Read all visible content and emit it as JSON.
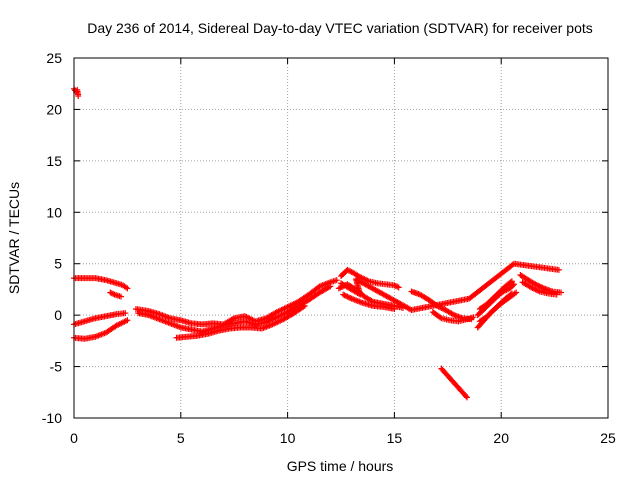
{
  "chart_data": {
    "type": "scatter",
    "title": "Day 236 of 2014, Sidereal Day-to-day VTEC variation (SDTVAR) for receiver pots",
    "xlabel": "GPS time / hours",
    "ylabel": "SDTVAR / TECUs",
    "xlim": [
      0,
      25
    ],
    "ylim": [
      -10,
      25
    ],
    "xticks": [
      0,
      5,
      10,
      15,
      20,
      25
    ],
    "yticks": [
      -10,
      -5,
      0,
      5,
      10,
      15,
      20,
      25
    ],
    "grid": true,
    "marker": "+",
    "color": "#ff0000",
    "segments": [
      {
        "name": "early-spike",
        "points": [
          [
            0.0,
            22.0
          ],
          [
            0.1,
            21.7
          ],
          [
            0.15,
            21.9
          ],
          [
            0.2,
            21.3
          ]
        ]
      },
      {
        "name": "upper-band-early",
        "points": [
          [
            0.0,
            3.6
          ],
          [
            0.5,
            3.6
          ],
          [
            1.0,
            3.6
          ],
          [
            1.5,
            3.4
          ],
          [
            2.0,
            3.1
          ],
          [
            2.3,
            2.9
          ],
          [
            2.5,
            2.6
          ]
        ]
      },
      {
        "name": "upper-band-tail",
        "points": [
          [
            1.7,
            2.2
          ],
          [
            1.9,
            2.0
          ],
          [
            2.2,
            1.8
          ]
        ]
      },
      {
        "name": "middle-band-early",
        "points": [
          [
            0.0,
            -0.9
          ],
          [
            0.5,
            -0.6
          ],
          [
            1.0,
            -0.3
          ],
          [
            1.5,
            -0.1
          ],
          [
            2.0,
            0.1
          ],
          [
            2.4,
            0.2
          ]
        ]
      },
      {
        "name": "lower-band-early",
        "points": [
          [
            0.0,
            -2.2
          ],
          [
            0.5,
            -2.3
          ],
          [
            1.0,
            -2.1
          ],
          [
            1.5,
            -1.7
          ],
          [
            2.0,
            -1.0
          ],
          [
            2.5,
            -0.5
          ]
        ]
      },
      {
        "name": "main-track-a",
        "points": [
          [
            2.9,
            0.6
          ],
          [
            3.5,
            0.4
          ],
          [
            4.0,
            0.1
          ],
          [
            4.5,
            -0.3
          ],
          [
            5.0,
            -0.5
          ],
          [
            5.5,
            -0.8
          ],
          [
            6.0,
            -0.9
          ],
          [
            6.5,
            -0.8
          ],
          [
            7.0,
            -0.9
          ],
          [
            7.5,
            -0.3
          ],
          [
            8.0,
            -0.1
          ],
          [
            8.5,
            -0.6
          ],
          [
            9.0,
            -0.3
          ],
          [
            9.5,
            0.3
          ],
          [
            10.0,
            0.8
          ],
          [
            10.5,
            1.3
          ],
          [
            11.0,
            2.0
          ],
          [
            11.5,
            2.8
          ],
          [
            12.0,
            3.2
          ],
          [
            12.3,
            3.4
          ]
        ]
      },
      {
        "name": "main-track-b",
        "points": [
          [
            3.0,
            0.2
          ],
          [
            3.5,
            0.0
          ],
          [
            4.0,
            -0.4
          ],
          [
            4.5,
            -0.8
          ],
          [
            5.0,
            -1.2
          ],
          [
            5.5,
            -1.4
          ],
          [
            6.0,
            -1.6
          ],
          [
            6.5,
            -1.3
          ],
          [
            7.0,
            -1.0
          ],
          [
            7.5,
            -0.8
          ],
          [
            8.0,
            -0.6
          ],
          [
            8.5,
            -0.9
          ],
          [
            9.0,
            -0.7
          ],
          [
            9.5,
            -0.2
          ],
          [
            10.0,
            0.3
          ],
          [
            10.5,
            0.9
          ],
          [
            11.0,
            1.5
          ],
          [
            11.5,
            2.2
          ],
          [
            12.0,
            2.8
          ]
        ]
      },
      {
        "name": "main-track-c",
        "points": [
          [
            4.8,
            -2.2
          ],
          [
            5.3,
            -2.1
          ],
          [
            5.8,
            -2.0
          ],
          [
            6.3,
            -1.8
          ],
          [
            6.8,
            -1.5
          ],
          [
            7.3,
            -1.3
          ],
          [
            7.8,
            -1.2
          ],
          [
            8.3,
            -1.2
          ],
          [
            8.8,
            -1.3
          ],
          [
            9.3,
            -0.9
          ],
          [
            9.8,
            -0.4
          ],
          [
            10.3,
            0.2
          ],
          [
            10.8,
            0.9
          ]
        ]
      },
      {
        "name": "peak-13h-upper",
        "points": [
          [
            12.5,
            3.8
          ],
          [
            12.8,
            4.4
          ],
          [
            13.0,
            4.2
          ],
          [
            13.4,
            3.7
          ],
          [
            13.8,
            3.3
          ],
          [
            14.2,
            3.1
          ],
          [
            14.6,
            3.0
          ],
          [
            15.0,
            2.9
          ],
          [
            15.2,
            2.7
          ]
        ]
      },
      {
        "name": "peak-13h-lower",
        "points": [
          [
            12.4,
            2.6
          ],
          [
            12.8,
            3.0
          ],
          [
            13.2,
            2.5
          ],
          [
            13.6,
            1.8
          ],
          [
            14.0,
            1.3
          ],
          [
            14.5,
            1.1
          ],
          [
            15.0,
            0.9
          ],
          [
            15.4,
            0.7
          ]
        ]
      },
      {
        "name": "peak-13h-lowest",
        "points": [
          [
            12.6,
            2.0
          ],
          [
            13.0,
            1.6
          ],
          [
            13.5,
            1.2
          ],
          [
            14.0,
            0.9
          ],
          [
            14.5,
            0.8
          ],
          [
            15.0,
            0.6
          ]
        ]
      },
      {
        "name": "stray-points",
        "points": [
          [
            12.5,
            3.1
          ],
          [
            13.4,
            2.0
          ],
          [
            13.2,
            3.5
          ],
          [
            15.8,
            0.5
          ],
          [
            18.5,
            1.6
          ],
          [
            20.6,
            5.0
          ],
          [
            22.7,
            4.4
          ]
        ]
      },
      {
        "name": "track-16-18",
        "points": [
          [
            15.8,
            2.3
          ],
          [
            16.2,
            2.0
          ],
          [
            16.6,
            1.5
          ],
          [
            17.0,
            0.9
          ],
          [
            17.4,
            0.5
          ],
          [
            17.8,
            0.0
          ],
          [
            18.2,
            -0.3
          ],
          [
            18.6,
            -0.4
          ]
        ]
      },
      {
        "name": "track-16-18-lower",
        "points": [
          [
            16.8,
            0.3
          ],
          [
            17.2,
            -0.3
          ],
          [
            17.6,
            -0.5
          ],
          [
            18.0,
            -0.6
          ],
          [
            18.4,
            -0.4
          ],
          [
            18.7,
            -0.2
          ]
        ]
      },
      {
        "name": "falling-line",
        "points": [
          [
            17.2,
            -5.2
          ],
          [
            17.5,
            -5.9
          ],
          [
            17.8,
            -6.6
          ],
          [
            18.1,
            -7.3
          ],
          [
            18.4,
            -8.0
          ]
        ]
      },
      {
        "name": "track-19-20-a",
        "points": [
          [
            18.9,
            0.0
          ],
          [
            19.2,
            0.6
          ],
          [
            19.5,
            1.2
          ],
          [
            19.8,
            1.8
          ],
          [
            20.1,
            2.3
          ],
          [
            20.4,
            2.6
          ],
          [
            20.6,
            3.0
          ]
        ]
      },
      {
        "name": "track-19-20-b",
        "points": [
          [
            18.9,
            -1.2
          ],
          [
            19.2,
            -0.5
          ],
          [
            19.5,
            0.2
          ],
          [
            19.8,
            0.8
          ],
          [
            20.1,
            1.3
          ],
          [
            20.5,
            1.9
          ],
          [
            20.7,
            2.2
          ]
        ]
      },
      {
        "name": "track-19-20-c",
        "points": [
          [
            19.0,
            -0.6
          ],
          [
            19.3,
            -0.2
          ],
          [
            19.6,
            0.4
          ],
          [
            19.9,
            1.0
          ],
          [
            20.2,
            1.6
          ],
          [
            20.5,
            2.1
          ]
        ]
      },
      {
        "name": "track-19-20-d",
        "points": [
          [
            19.0,
            0.6
          ],
          [
            19.3,
            1.0
          ],
          [
            19.6,
            1.6
          ],
          [
            19.9,
            2.2
          ],
          [
            20.2,
            2.8
          ],
          [
            20.5,
            3.3
          ]
        ]
      },
      {
        "name": "late-upper",
        "points": [
          [
            20.9,
            3.9
          ],
          [
            21.2,
            3.5
          ],
          [
            21.6,
            3.0
          ],
          [
            22.0,
            2.6
          ],
          [
            22.4,
            2.3
          ],
          [
            22.8,
            2.2
          ]
        ]
      },
      {
        "name": "late-lower",
        "points": [
          [
            21.0,
            3.2
          ],
          [
            21.4,
            2.7
          ],
          [
            21.8,
            2.3
          ],
          [
            22.2,
            2.1
          ],
          [
            22.6,
            2.0
          ]
        ]
      }
    ]
  }
}
